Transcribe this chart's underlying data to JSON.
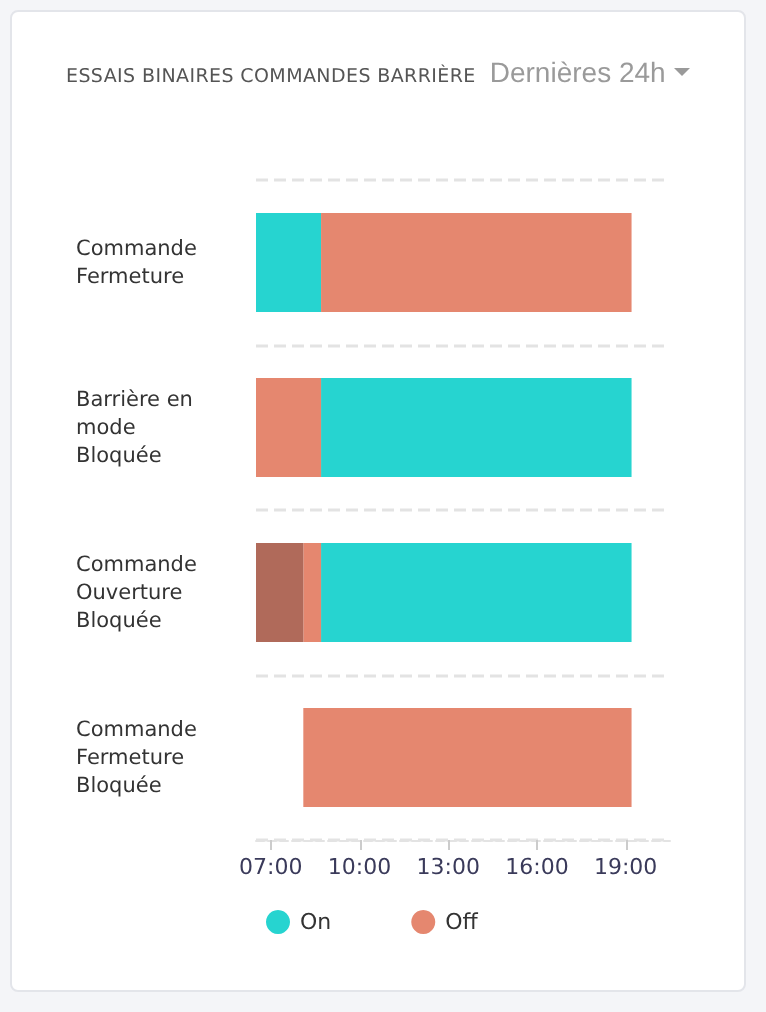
{
  "chart_data": {
    "type": "bar",
    "orientation": "horizontal",
    "title": "ESSAIS BINAIRES COMMANDES BARRIÈRE",
    "subtitle": "Dernières 24h",
    "categories": [
      "Commande Fermeture",
      "Barrière en mode Bloquée",
      "Commande Ouverture Bloquée",
      "Commande Fermeture Bloquée"
    ],
    "series": [
      {
        "name": "On",
        "color": "#26d4d0",
        "base": [
          6.5,
          8.7,
          8.7,
          null
        ],
        "values": [
          2.2,
          10.5,
          10.5,
          null
        ]
      },
      {
        "name": "Off",
        "color": "#e5876f",
        "base": [
          8.7,
          6.5,
          8.1,
          8.1
        ],
        "values": [
          10.5,
          2.2,
          0.6,
          11.1
        ]
      },
      {
        "color": "#b06a5a",
        "base": [
          null,
          null,
          6.5,
          null
        ],
        "values": [
          null,
          null,
          1.6,
          null
        ]
      }
    ],
    "xlim": [
      6.5,
      20.5
    ],
    "xticks": [
      {
        "value": 7,
        "label": "07:00"
      },
      {
        "value": 10,
        "label": "10:00"
      },
      {
        "value": 13,
        "label": "13:00"
      },
      {
        "value": 16,
        "label": "16:00"
      },
      {
        "value": 19,
        "label": "19:00"
      }
    ],
    "grid": "y",
    "legend": "bottom"
  }
}
